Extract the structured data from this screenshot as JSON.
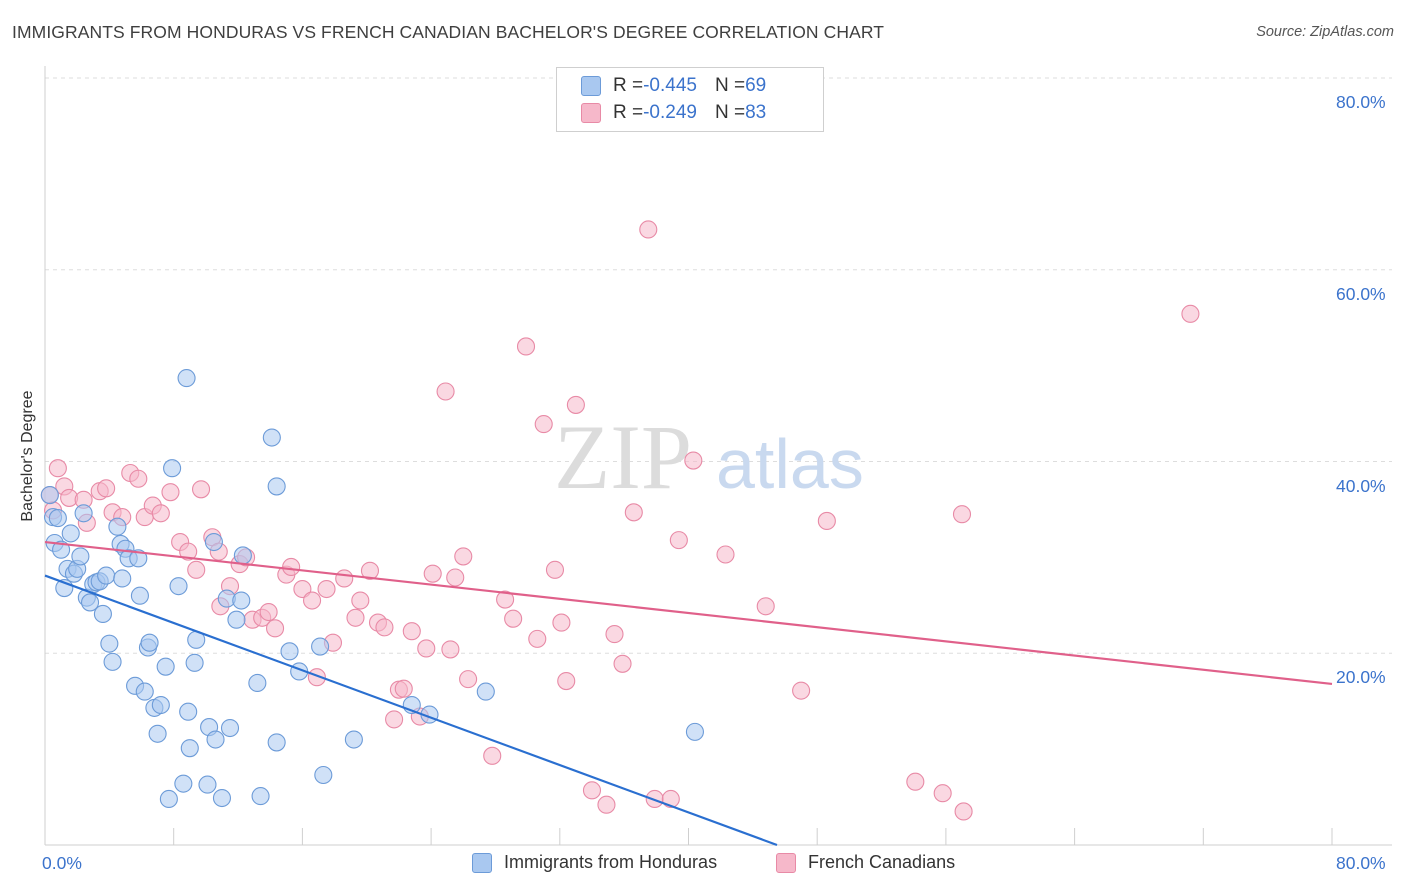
{
  "title": "IMMIGRANTS FROM HONDURAS VS FRENCH CANADIAN BACHELOR'S DEGREE CORRELATION CHART",
  "source": "Source: ZipAtlas.com",
  "watermark": {
    "zip": "ZIP",
    "atlas": "atlas"
  },
  "colors": {
    "blue_fill": "#a9c8f0",
    "blue_stroke": "#6c9bd8",
    "blue_line": "#2a6fd0",
    "pink_fill": "#f6b8ca",
    "pink_stroke": "#e88aa6",
    "pink_line": "#e0608a",
    "tick_text": "#3b73cc",
    "grid": "#dddddd"
  },
  "legend": {
    "rows": [
      {
        "r_label": "R = ",
        "r_value": "-0.445",
        "n_label": "N = ",
        "n_value": "69",
        "color": "#a9c8f0",
        "border": "#6c9bd8"
      },
      {
        "r_label": "R = ",
        "r_value": "-0.249",
        "n_label": "N = ",
        "n_value": "83",
        "color": "#f6b8ca",
        "border": "#e88aa6"
      }
    ]
  },
  "bottom_legend": [
    {
      "label": "Immigrants from Honduras",
      "color": "#a9c8f0",
      "border": "#6c9bd8"
    },
    {
      "label": "French Canadians",
      "color": "#f6b8ca",
      "border": "#e88aa6"
    }
  ],
  "chart_data": {
    "type": "scatter",
    "title": "IMMIGRANTS FROM HONDURAS VS FRENCH CANADIAN BACHELOR'S DEGREE CORRELATION CHART",
    "xlabel": "",
    "ylabel": "Bachelor's Degree",
    "xlim": [
      0,
      80
    ],
    "ylim": [
      0,
      80
    ],
    "x_tick_labels": [
      "0.0%",
      "80.0%"
    ],
    "y_tick_labels": [
      "80.0%",
      "60.0%",
      "40.0%",
      "20.0%"
    ],
    "y_ticks": [
      80,
      60,
      40,
      20
    ],
    "grid": true,
    "series": [
      {
        "name": "Immigrants from Honduras",
        "r": -0.445,
        "n": 69,
        "trend": [
          [
            0,
            28.1
          ],
          [
            45.5,
            0
          ]
        ],
        "points": [
          [
            0.3,
            36.5
          ],
          [
            0.5,
            34.2
          ],
          [
            0.6,
            31.5
          ],
          [
            0.8,
            34.1
          ],
          [
            1.0,
            30.8
          ],
          [
            1.2,
            26.8
          ],
          [
            1.4,
            28.8
          ],
          [
            1.6,
            32.5
          ],
          [
            1.8,
            28.3
          ],
          [
            2.0,
            28.8
          ],
          [
            2.2,
            30.1
          ],
          [
            2.4,
            34.6
          ],
          [
            2.6,
            25.8
          ],
          [
            2.8,
            25.3
          ],
          [
            3.0,
            27.2
          ],
          [
            3.2,
            27.4
          ],
          [
            3.4,
            27.5
          ],
          [
            3.6,
            24.1
          ],
          [
            3.8,
            28.1
          ],
          [
            4.0,
            21.0
          ],
          [
            4.2,
            19.1
          ],
          [
            4.5,
            33.2
          ],
          [
            4.7,
            31.4
          ],
          [
            4.8,
            27.8
          ],
          [
            5.0,
            30.9
          ],
          [
            5.2,
            29.9
          ],
          [
            5.6,
            16.6
          ],
          [
            5.8,
            29.9
          ],
          [
            5.9,
            26.0
          ],
          [
            6.2,
            16.0
          ],
          [
            6.4,
            20.6
          ],
          [
            6.5,
            21.1
          ],
          [
            6.8,
            14.3
          ],
          [
            7.0,
            11.6
          ],
          [
            7.2,
            14.6
          ],
          [
            7.5,
            18.6
          ],
          [
            7.7,
            4.8
          ],
          [
            7.9,
            39.3
          ],
          [
            8.3,
            27.0
          ],
          [
            8.6,
            6.4
          ],
          [
            8.8,
            48.7
          ],
          [
            8.9,
            13.9
          ],
          [
            9.0,
            10.1
          ],
          [
            9.3,
            19.0
          ],
          [
            9.4,
            21.4
          ],
          [
            10.1,
            6.3
          ],
          [
            10.2,
            12.3
          ],
          [
            10.5,
            31.6
          ],
          [
            10.6,
            11.0
          ],
          [
            11.0,
            4.9
          ],
          [
            11.3,
            25.7
          ],
          [
            11.5,
            12.2
          ],
          [
            11.9,
            23.5
          ],
          [
            12.2,
            25.5
          ],
          [
            12.3,
            30.2
          ],
          [
            13.2,
            16.9
          ],
          [
            13.4,
            5.1
          ],
          [
            14.1,
            42.5
          ],
          [
            14.4,
            37.4
          ],
          [
            14.4,
            10.7
          ],
          [
            15.2,
            20.2
          ],
          [
            15.8,
            18.1
          ],
          [
            17.1,
            20.7
          ],
          [
            17.3,
            7.3
          ],
          [
            19.2,
            11.0
          ],
          [
            22.8,
            14.6
          ],
          [
            23.9,
            13.6
          ],
          [
            27.4,
            16.0
          ],
          [
            40.4,
            11.8
          ]
        ]
      },
      {
        "name": "French Canadians",
        "r": -0.249,
        "n": 83,
        "trend": [
          [
            0,
            31.6
          ],
          [
            80,
            16.8
          ]
        ],
        "points": [
          [
            0.3,
            36.5
          ],
          [
            0.5,
            34.9
          ],
          [
            0.8,
            39.3
          ],
          [
            1.2,
            37.4
          ],
          [
            1.5,
            36.2
          ],
          [
            2.4,
            36.0
          ],
          [
            2.6,
            33.6
          ],
          [
            3.4,
            36.9
          ],
          [
            3.8,
            37.2
          ],
          [
            4.2,
            34.7
          ],
          [
            4.8,
            34.2
          ],
          [
            5.3,
            38.8
          ],
          [
            5.8,
            38.2
          ],
          [
            6.2,
            34.2
          ],
          [
            6.7,
            35.4
          ],
          [
            7.2,
            34.6
          ],
          [
            7.8,
            36.8
          ],
          [
            8.4,
            31.6
          ],
          [
            8.9,
            30.6
          ],
          [
            9.4,
            28.7
          ],
          [
            9.7,
            37.1
          ],
          [
            10.4,
            32.1
          ],
          [
            10.8,
            30.6
          ],
          [
            10.9,
            24.9
          ],
          [
            11.5,
            27.0
          ],
          [
            12.1,
            29.3
          ],
          [
            12.5,
            30.0
          ],
          [
            12.9,
            23.5
          ],
          [
            13.5,
            23.7
          ],
          [
            13.9,
            24.3
          ],
          [
            14.3,
            22.6
          ],
          [
            15.0,
            28.2
          ],
          [
            15.3,
            29.0
          ],
          [
            16.0,
            26.7
          ],
          [
            16.6,
            25.5
          ],
          [
            16.9,
            17.5
          ],
          [
            17.5,
            26.7
          ],
          [
            17.9,
            21.1
          ],
          [
            18.6,
            27.8
          ],
          [
            19.3,
            23.7
          ],
          [
            19.6,
            25.5
          ],
          [
            20.2,
            28.6
          ],
          [
            20.7,
            23.2
          ],
          [
            21.1,
            22.7
          ],
          [
            21.7,
            13.1
          ],
          [
            22.0,
            16.2
          ],
          [
            22.3,
            16.3
          ],
          [
            22.8,
            22.3
          ],
          [
            23.3,
            13.4
          ],
          [
            23.7,
            20.5
          ],
          [
            24.1,
            28.3
          ],
          [
            24.9,
            47.3
          ],
          [
            25.2,
            20.4
          ],
          [
            25.5,
            27.9
          ],
          [
            26.0,
            30.1
          ],
          [
            26.3,
            17.3
          ],
          [
            27.8,
            9.3
          ],
          [
            28.6,
            25.6
          ],
          [
            29.1,
            23.6
          ],
          [
            29.9,
            52.0
          ],
          [
            30.6,
            21.5
          ],
          [
            31.0,
            43.9
          ],
          [
            31.7,
            28.7
          ],
          [
            32.1,
            23.2
          ],
          [
            32.4,
            17.1
          ],
          [
            33.0,
            45.9
          ],
          [
            34.0,
            5.7
          ],
          [
            34.9,
            4.2
          ],
          [
            35.4,
            22.0
          ],
          [
            35.9,
            18.9
          ],
          [
            36.6,
            34.7
          ],
          [
            37.5,
            64.2
          ],
          [
            37.9,
            4.8
          ],
          [
            38.9,
            4.8
          ],
          [
            39.4,
            31.8
          ],
          [
            40.3,
            40.1
          ],
          [
            42.3,
            30.3
          ],
          [
            44.8,
            24.9
          ],
          [
            47.0,
            16.1
          ],
          [
            48.6,
            33.8
          ],
          [
            54.1,
            6.6
          ],
          [
            55.8,
            5.4
          ],
          [
            57.0,
            34.5
          ],
          [
            57.1,
            3.5
          ],
          [
            71.2,
            55.4
          ]
        ]
      }
    ]
  }
}
